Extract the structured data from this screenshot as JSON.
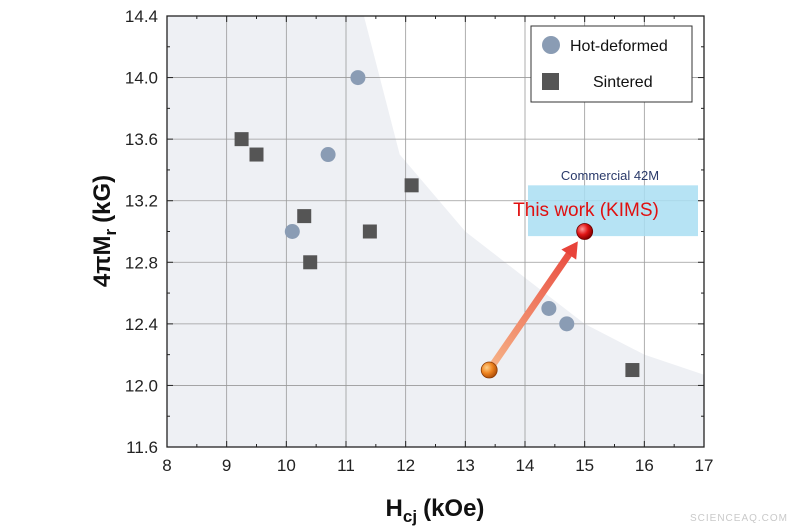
{
  "chart_data": {
    "type": "scatter",
    "xlabel_main": "H",
    "xlabel_sub": "cj",
    "xlabel_unit": "(kOe)",
    "ylabel_main": "4πM",
    "ylabel_sub": "r",
    "ylabel_unit": "(kG)",
    "xlim": [
      8,
      17
    ],
    "ylim": [
      11.6,
      14.4
    ],
    "x_ticks": [
      "8",
      "9",
      "10",
      "11",
      "12",
      "13",
      "14",
      "15",
      "16",
      "17"
    ],
    "y_ticks": [
      "11.6",
      "12.0",
      "12.4",
      "12.8",
      "13.2",
      "13.6",
      "14.0",
      "14.4"
    ],
    "grid": true,
    "legend_position": "top-right",
    "series": [
      {
        "name": "Hot-deformed",
        "marker": "circle",
        "color": "#8a9cb4",
        "points": [
          [
            11.2,
            14.0
          ],
          [
            10.7,
            13.5
          ],
          [
            10.1,
            13.0
          ],
          [
            14.4,
            12.5
          ],
          [
            14.7,
            12.4
          ]
        ]
      },
      {
        "name": "Sintered",
        "marker": "square",
        "color": "#555555",
        "points": [
          [
            9.25,
            13.6
          ],
          [
            9.5,
            13.5
          ],
          [
            10.3,
            13.1
          ],
          [
            10.4,
            12.8
          ],
          [
            11.4,
            13.0
          ],
          [
            12.1,
            13.3
          ],
          [
            15.8,
            12.1
          ]
        ]
      }
    ],
    "commercial_region": {
      "label": "Commercial 42M",
      "x": [
        14.05,
        17.0
      ],
      "y": [
        12.97,
        13.3
      ],
      "color": "#a9def2"
    },
    "this_work": {
      "label": "This work (KIMS)",
      "point": [
        15.0,
        13.0
      ],
      "color": "#dd1111"
    },
    "start_point": {
      "point": [
        13.4,
        12.1
      ],
      "color": "#e87a1a"
    },
    "arrow": {
      "from": [
        13.4,
        12.1
      ],
      "to": [
        15.0,
        13.0
      ]
    },
    "shaded_region": {
      "color": "#eef0f4",
      "boundary": [
        [
          11.3,
          14.4
        ],
        [
          11.9,
          13.5
        ],
        [
          13.0,
          13.0
        ],
        [
          14.0,
          12.7
        ],
        [
          15.0,
          12.4
        ],
        [
          16.0,
          12.2
        ],
        [
          17.0,
          12.07
        ]
      ]
    }
  },
  "watermark": "SCIENCEAQ.COM"
}
